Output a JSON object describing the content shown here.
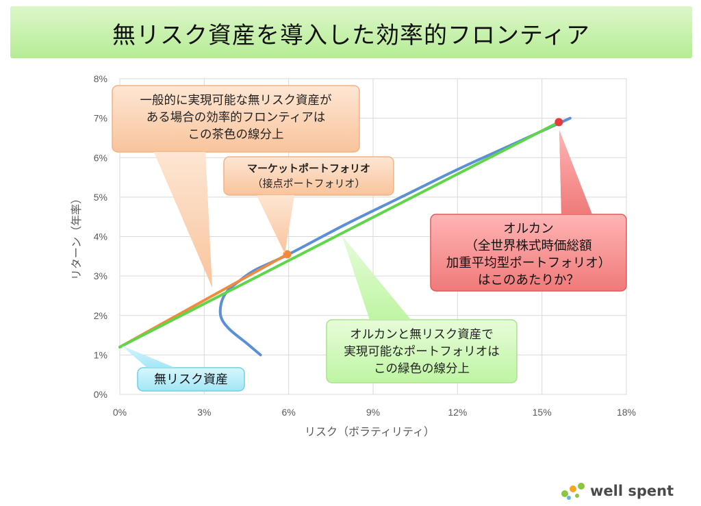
{
  "title": "無リスク資産を導入した効率的フロンティア",
  "chart_data": {
    "type": "line",
    "xlabel": "リスク（ボラティリティ）",
    "ylabel": "リターン（年率）",
    "xlim": [
      0,
      18
    ],
    "ylim": [
      0,
      8
    ],
    "xticks": [
      0,
      3,
      6,
      9,
      12,
      15,
      18
    ],
    "yticks": [
      0,
      1,
      2,
      3,
      4,
      5,
      6,
      7,
      8
    ],
    "xtick_labels": [
      "0%",
      "3%",
      "6%",
      "9%",
      "12%",
      "15%",
      "18%"
    ],
    "ytick_labels": [
      "0%",
      "1%",
      "2%",
      "3%",
      "4%",
      "5%",
      "6%",
      "7%",
      "8%"
    ],
    "grid": true,
    "series": [
      {
        "color": "#5b8fd6",
        "x": [
          5.0,
          4.5,
          3.9,
          3.6,
          3.6,
          3.8,
          4.2,
          4.8,
          6.0,
          8.0,
          10.0,
          12.0,
          14.0,
          16.0
        ],
        "y": [
          1.0,
          1.3,
          1.65,
          1.95,
          2.3,
          2.6,
          2.85,
          3.15,
          3.55,
          4.3,
          5.0,
          5.7,
          6.35,
          7.0
        ]
      },
      {
        "color": "#f08a3c",
        "x": [
          0,
          5.95
        ],
        "y": [
          1.2,
          3.55
        ]
      },
      {
        "color": "#5fd64a",
        "x": [
          0,
          15.6
        ],
        "y": [
          1.2,
          6.9
        ]
      }
    ],
    "points": [
      {
        "x": 5.95,
        "y": 3.55,
        "color": "#f08a3c"
      },
      {
        "x": 15.6,
        "y": 6.9,
        "color": "#e83a3a"
      }
    ],
    "annotations": [
      {
        "id": "brown",
        "lines": [
          "一般的に実現可能な無リスク資産が",
          "ある場合の効率的フロンティアは",
          "この茶色の線分上"
        ]
      },
      {
        "id": "market",
        "lines": [
          "マーケットポートフォリオ",
          "（接点ポートフォリオ）"
        ]
      },
      {
        "id": "orcan",
        "lines": [
          "オルカン",
          "（全世界株式時価総額",
          "加重平均型ポートフォリオ）",
          "はこのあたりか？"
        ]
      },
      {
        "id": "green",
        "lines": [
          "オルカンと無リスク資産で",
          "実現可能なポートフォリオは",
          "この緑色の線分上"
        ]
      },
      {
        "id": "riskfree",
        "lines": [
          "無リスク資産"
        ]
      }
    ]
  },
  "logo": {
    "text": "well spent",
    "colors": [
      "#8cc63f",
      "#f5a623",
      "#5bb5e8"
    ]
  }
}
